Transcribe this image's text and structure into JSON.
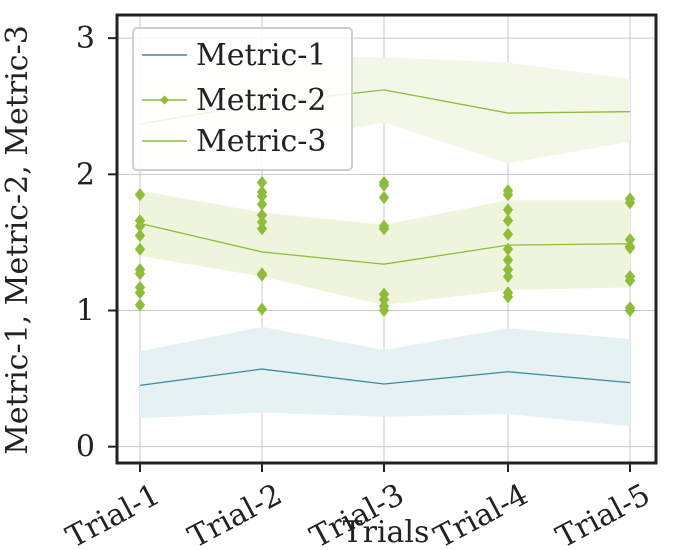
{
  "chart_data": {
    "type": "line",
    "title": "",
    "xlabel": "Trials",
    "ylabel": "Metric-1, Metric-2, Metric-3",
    "categories": [
      "Trial-1",
      "Trial-2",
      "Trial-3",
      "Trial-4",
      "Trial-5"
    ],
    "yticks": [
      "0",
      "1",
      "2",
      "3"
    ],
    "ylim": [
      -0.12,
      3.17
    ],
    "grid": true,
    "legend_position": "top-left",
    "series": [
      {
        "name": "Metric-1",
        "color": "#3a8aa0",
        "band_color": "#e6f1f4",
        "values": [
          0.45,
          0.57,
          0.46,
          0.55,
          0.47
        ],
        "band_lower": [
          0.21,
          0.25,
          0.22,
          0.24,
          0.15
        ],
        "band_upper": [
          0.7,
          0.88,
          0.71,
          0.87,
          0.79
        ]
      },
      {
        "name": "Metric-2",
        "color": "#8fbc3a",
        "band_color": "#eef5dc",
        "values": [
          1.64,
          1.43,
          1.34,
          1.48,
          1.49
        ],
        "band_lower": [
          1.4,
          1.25,
          1.04,
          1.15,
          1.17
        ],
        "band_upper": [
          1.88,
          1.72,
          1.63,
          1.81,
          1.81
        ],
        "markers": [
          [
            1.85,
            1.66,
            1.62,
            1.55,
            1.45,
            1.3,
            1.27,
            1.17,
            1.13,
            1.04
          ],
          [
            1.94,
            1.87,
            1.84,
            1.78,
            1.7,
            1.65,
            1.6,
            1.27,
            1.26,
            1.01
          ],
          [
            1.94,
            1.92,
            1.83,
            1.62,
            1.6,
            1.12,
            1.08,
            1.03,
            1.0
          ],
          [
            1.88,
            1.85,
            1.74,
            1.66,
            1.56,
            1.45,
            1.37,
            1.3,
            1.25,
            1.13,
            1.1
          ],
          [
            1.82,
            1.79,
            1.52,
            1.47,
            1.46,
            1.25,
            1.22,
            1.02,
            1.0
          ]
        ]
      },
      {
        "name": "Metric-3",
        "color": "#8fbc3a",
        "band_color": "#f3f7e8",
        "values": [
          2.37,
          2.52,
          2.62,
          2.45,
          2.46
        ],
        "band_lower": [
          2.05,
          2.22,
          2.38,
          2.08,
          2.24
        ],
        "band_upper": [
          2.7,
          2.86,
          2.86,
          2.82,
          2.7
        ]
      }
    ]
  }
}
